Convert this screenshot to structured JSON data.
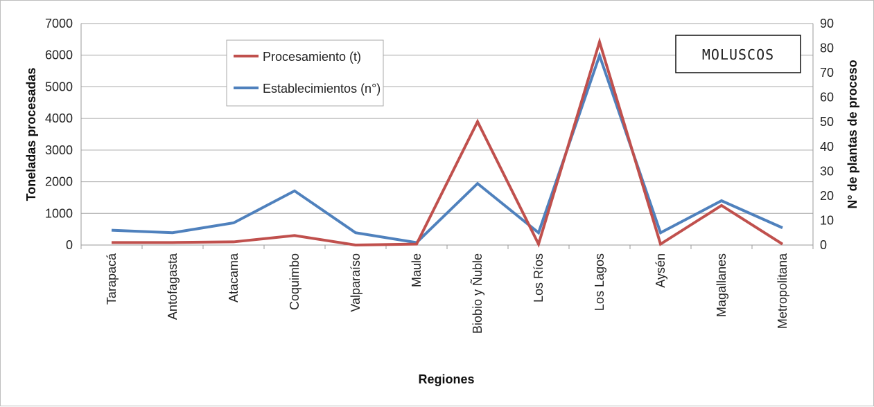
{
  "chart_data": {
    "type": "line",
    "title": "",
    "annotation": "MOLUSCOS",
    "xlabel": "Regiones",
    "ylabel_left": "Toneladas procesadas",
    "ylabel_right": "N° de plantas de proceso",
    "ylim_left": [
      0,
      7000
    ],
    "ylim_right": [
      0,
      90
    ],
    "yticks_left": [
      0,
      1000,
      2000,
      3000,
      4000,
      5000,
      6000,
      7000
    ],
    "yticks_right": [
      0,
      10,
      20,
      30,
      40,
      50,
      60,
      70,
      80,
      90
    ],
    "categories": [
      "Tarapacá",
      "Antofagasta",
      "Atacama",
      "Coquimbo",
      "Valparaíso",
      "Maule",
      "Biobio y Ñuble",
      "Los Ríos",
      "Los Lagos",
      "Aysén",
      "Magallanes",
      "Metropolitana"
    ],
    "series": [
      {
        "name": "Procesamiento (t)",
        "axis": "left",
        "color": "#c0504d",
        "values": [
          80,
          80,
          100,
          300,
          0,
          30,
          3900,
          30,
          6420,
          30,
          1250,
          30
        ]
      },
      {
        "name": "Establecimientos (n°)",
        "axis": "right",
        "color": "#4f81bd",
        "values": [
          6,
          5,
          9,
          22,
          5,
          1,
          25,
          5,
          77,
          5,
          18,
          7
        ]
      }
    ],
    "grid": true,
    "legend_position": "top-left"
  }
}
